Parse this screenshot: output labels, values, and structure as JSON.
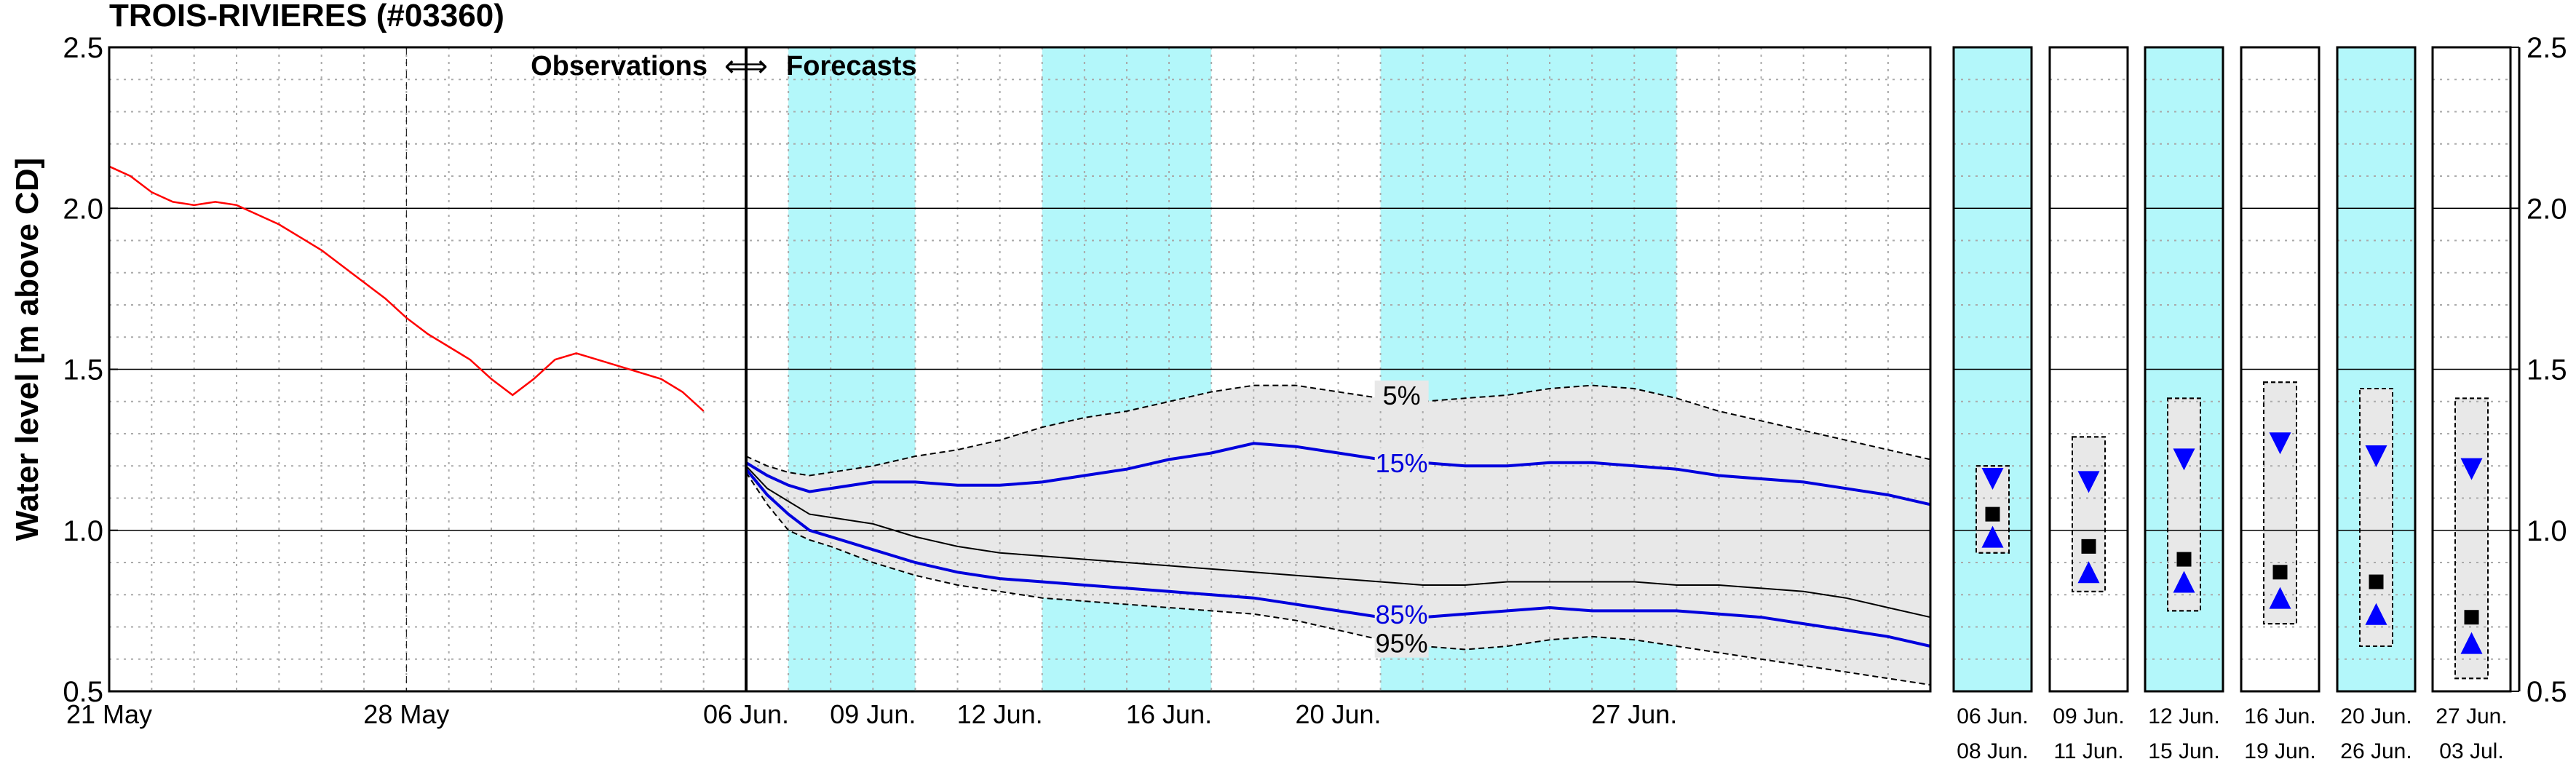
{
  "colors": {
    "cyan_band": "#b3f7fa",
    "spread_fill": "#e8e8e8",
    "observations": "#ff0000",
    "percentile_blue": "#0000dd",
    "median": "#000000",
    "grid_major": "#000000",
    "grid_minor": "#aaaaaa"
  },
  "chart_data": {
    "type": "line",
    "title": "TROIS-RIVIERES (#03360)",
    "ylabel": "Water level [m above CD]",
    "ylim": [
      0.5,
      2.5
    ],
    "yticks": [
      "0.5",
      "1.0",
      "1.5",
      "2.0",
      "2.5"
    ],
    "grid": true,
    "annotation": {
      "observations_label": "Observations",
      "arrow": "⟺",
      "forecasts_label": "Forecasts"
    },
    "observations": {
      "xlabels": [
        {
          "day": 0,
          "label": "21 May"
        },
        {
          "day": 7,
          "label": "28 May"
        }
      ],
      "x_range_days": [
        0,
        15
      ],
      "x": [
        0,
        0.5,
        1,
        1.5,
        2,
        2.5,
        3,
        3.5,
        4,
        4.5,
        5,
        5.5,
        6,
        6.5,
        7,
        7.5,
        8,
        8.5,
        9,
        9.5,
        10,
        10.5,
        11,
        11.5,
        12,
        12.5,
        13,
        13.5,
        14
      ],
      "y": [
        2.13,
        2.1,
        2.05,
        2.02,
        2.01,
        2.02,
        2.01,
        1.98,
        1.95,
        1.91,
        1.87,
        1.82,
        1.77,
        1.72,
        1.66,
        1.61,
        1.57,
        1.53,
        1.47,
        1.42,
        1.47,
        1.53,
        1.55,
        1.53,
        1.51,
        1.49,
        1.47,
        1.43,
        1.37
      ]
    },
    "forecast": {
      "x_range_days": [
        0,
        28
      ],
      "xlabels": [
        {
          "day": 0,
          "label": "06 Jun."
        },
        {
          "day": 3,
          "label": "09 Jun."
        },
        {
          "day": 6,
          "label": "12 Jun."
        },
        {
          "day": 10,
          "label": "16 Jun."
        },
        {
          "day": 14,
          "label": "20 Jun."
        },
        {
          "day": 21,
          "label": "27 Jun."
        }
      ],
      "bands": [
        [
          1,
          4
        ],
        [
          7,
          11
        ],
        [
          15,
          22
        ]
      ],
      "x": [
        0,
        0.5,
        1,
        1.5,
        2,
        3,
        4,
        5,
        6,
        7,
        8,
        9,
        10,
        11,
        12,
        13,
        14,
        15,
        16,
        17,
        18,
        19,
        20,
        21,
        22,
        23,
        24,
        25,
        26,
        27,
        28
      ],
      "series": [
        {
          "name": "5%",
          "style": "dashed",
          "values": [
            1.23,
            1.2,
            1.18,
            1.17,
            1.18,
            1.2,
            1.23,
            1.25,
            1.28,
            1.32,
            1.35,
            1.37,
            1.4,
            1.43,
            1.45,
            1.45,
            1.43,
            1.41,
            1.4,
            1.41,
            1.42,
            1.44,
            1.45,
            1.44,
            1.41,
            1.37,
            1.34,
            1.31,
            1.28,
            1.25,
            1.22
          ]
        },
        {
          "name": "15%",
          "style": "solid",
          "values": [
            1.21,
            1.17,
            1.14,
            1.12,
            1.13,
            1.15,
            1.15,
            1.14,
            1.14,
            1.15,
            1.17,
            1.19,
            1.22,
            1.24,
            1.27,
            1.26,
            1.24,
            1.22,
            1.21,
            1.2,
            1.2,
            1.21,
            1.21,
            1.2,
            1.19,
            1.17,
            1.16,
            1.15,
            1.13,
            1.11,
            1.08
          ]
        },
        {
          "name": "median",
          "style": "solid",
          "values": [
            1.2,
            1.13,
            1.09,
            1.05,
            1.04,
            1.02,
            0.98,
            0.95,
            0.93,
            0.92,
            0.91,
            0.9,
            0.89,
            0.88,
            0.87,
            0.86,
            0.85,
            0.84,
            0.83,
            0.83,
            0.84,
            0.84,
            0.84,
            0.84,
            0.83,
            0.83,
            0.82,
            0.81,
            0.79,
            0.76,
            0.73
          ]
        },
        {
          "name": "85%",
          "style": "solid",
          "values": [
            1.19,
            1.11,
            1.05,
            1.0,
            0.98,
            0.94,
            0.9,
            0.87,
            0.85,
            0.84,
            0.83,
            0.82,
            0.81,
            0.8,
            0.79,
            0.77,
            0.75,
            0.73,
            0.73,
            0.74,
            0.75,
            0.76,
            0.75,
            0.75,
            0.75,
            0.74,
            0.73,
            0.71,
            0.69,
            0.67,
            0.64
          ]
        },
        {
          "name": "95%",
          "style": "dashed",
          "values": [
            1.18,
            1.08,
            1.0,
            0.97,
            0.95,
            0.9,
            0.86,
            0.83,
            0.81,
            0.79,
            0.78,
            0.77,
            0.76,
            0.75,
            0.74,
            0.72,
            0.69,
            0.66,
            0.64,
            0.63,
            0.64,
            0.66,
            0.67,
            0.66,
            0.64,
            0.62,
            0.6,
            0.58,
            0.56,
            0.54,
            0.52
          ]
        }
      ],
      "labels": [
        {
          "text": "5%",
          "color": "#000000",
          "x": 15.5,
          "y": 1.42
        },
        {
          "text": "15%",
          "color": "#0000dd",
          "x": 15.5,
          "y": 1.21
        },
        {
          "text": "85%",
          "color": "#0000dd",
          "x": 15.5,
          "y": 0.74
        },
        {
          "text": "95%",
          "color": "#000000",
          "x": 15.5,
          "y": 0.65
        }
      ]
    },
    "summary_panels": [
      {
        "line1": "06 Jun.",
        "line2": "08 Jun.",
        "highlight": true,
        "range": [
          0.93,
          1.2
        ],
        "upper": 1.16,
        "median": 1.05,
        "lower": 0.98
      },
      {
        "line1": "09 Jun.",
        "line2": "11 Jun.",
        "highlight": false,
        "range": [
          0.81,
          1.29
        ],
        "upper": 1.15,
        "median": 0.95,
        "lower": 0.87
      },
      {
        "line1": "12 Jun.",
        "line2": "15 Jun.",
        "highlight": true,
        "range": [
          0.75,
          1.41
        ],
        "upper": 1.22,
        "median": 0.91,
        "lower": 0.84
      },
      {
        "line1": "16 Jun.",
        "line2": "19 Jun.",
        "highlight": false,
        "range": [
          0.71,
          1.46
        ],
        "upper": 1.27,
        "median": 0.87,
        "lower": 0.79
      },
      {
        "line1": "20 Jun.",
        "line2": "26 Jun.",
        "highlight": true,
        "range": [
          0.64,
          1.44
        ],
        "upper": 1.23,
        "median": 0.84,
        "lower": 0.74
      },
      {
        "line1": "27 Jun.",
        "line2": "03 Jul.",
        "highlight": false,
        "range": [
          0.54,
          1.41
        ],
        "upper": 1.19,
        "median": 0.73,
        "lower": 0.65
      }
    ]
  }
}
